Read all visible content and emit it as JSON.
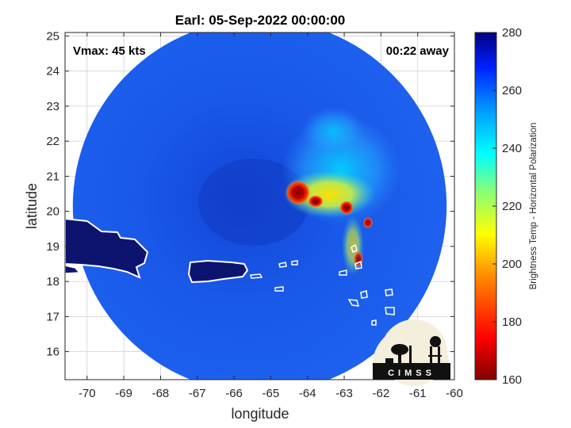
{
  "title": "Earl: 05-Sep-2022 00:00:00",
  "vmax_label": "Vmax: 45 kts",
  "time_label": "00:22 away",
  "xlabel": "longitude",
  "ylabel": "latitude",
  "colorbar_label": "Brightness Temp - Horizontal Polarization",
  "logo_text": "CIMSS",
  "colors": {
    "land_outline": "#ffffff",
    "land_fill": "#0c1470",
    "background_ocean": "#1a5ae6"
  },
  "chart_data": {
    "type": "heatmap",
    "title": "Earl: 05-Sep-2022 00:00:00",
    "xlabel": "longitude",
    "ylabel": "latitude",
    "xlim": [
      -70.6,
      -60
    ],
    "ylim": [
      15.2,
      25.1
    ],
    "xticks": [
      -70,
      -69,
      -68,
      -67,
      -66,
      -65,
      -64,
      -63,
      -62,
      -61,
      -60
    ],
    "yticks": [
      16,
      17,
      18,
      19,
      20,
      21,
      22,
      23,
      24,
      25
    ],
    "grid": true,
    "colorbar": {
      "label": "Brightness Temp - Horizontal Polarization",
      "range": [
        160,
        280
      ],
      "ticks": [
        160,
        180,
        200,
        220,
        240,
        260,
        280
      ]
    },
    "swath": {
      "center_lon": -65.3,
      "center_lat": 20.15,
      "radius_deg": 5.3
    },
    "storm_features": [
      {
        "lon": -64.3,
        "lat": 20.5,
        "value": 165
      },
      {
        "lon": -63.8,
        "lat": 20.2,
        "value": 178
      },
      {
        "lon": -62.95,
        "lat": 20.05,
        "value": 170
      },
      {
        "lon": -62.6,
        "lat": 19.55,
        "value": 185
      },
      {
        "lon": -62.7,
        "lat": 18.6,
        "value": 195
      },
      {
        "lon": -63.6,
        "lat": 20.8,
        "value": 210
      },
      {
        "lon": -63.2,
        "lat": 21.5,
        "value": 235
      }
    ]
  }
}
